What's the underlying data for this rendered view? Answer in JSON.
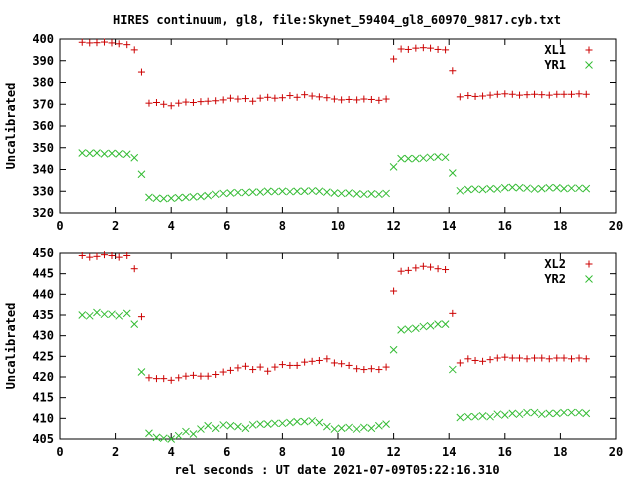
{
  "title": "HIRES continuum, gl8, file:Skynet_59404_gl8_60970_9817.cyb.txt",
  "xlabel": "rel seconds : UT date 2021-07-09T05:22:16.310",
  "colors": {
    "red": "#cc0000",
    "green": "#33bb33",
    "axis": "#000000"
  },
  "chart_data": [
    {
      "type": "scatter",
      "ylabel": "Uncalibrated",
      "xlim": [
        0,
        20
      ],
      "ylim": [
        320,
        400
      ],
      "xticks": [
        0,
        2,
        4,
        6,
        8,
        10,
        12,
        14,
        16,
        18,
        20
      ],
      "yticks": [
        320,
        330,
        340,
        350,
        360,
        370,
        380,
        390,
        400
      ],
      "grid": false,
      "legend_position": "top-right",
      "series": [
        {
          "name": "XL1",
          "marker": "plus",
          "color": "#cc0000",
          "x": [
            0.8,
            1.07,
            1.33,
            1.6,
            1.87,
            2.13,
            2.4,
            2.67,
            2.93,
            3.2,
            3.47,
            3.73,
            4.0,
            4.27,
            4.53,
            4.8,
            5.07,
            5.33,
            5.6,
            5.87,
            6.13,
            6.4,
            6.67,
            6.93,
            7.2,
            7.47,
            7.73,
            8.0,
            8.27,
            8.53,
            8.8,
            9.07,
            9.33,
            9.6,
            9.87,
            10.13,
            10.4,
            10.67,
            10.93,
            11.2,
            11.47,
            11.73,
            12.0,
            12.27,
            12.53,
            12.8,
            13.07,
            13.33,
            13.6,
            13.87,
            14.13,
            14.4,
            14.67,
            14.93,
            15.2,
            15.47,
            15.73,
            16.0,
            16.27,
            16.53,
            16.8,
            17.07,
            17.33,
            17.6,
            17.87,
            18.13,
            18.4,
            18.67,
            18.93
          ],
          "y": [
            398.5,
            398.2,
            398.3,
            398.6,
            398.2,
            397.8,
            397.4,
            395.0,
            384.8,
            370.5,
            370.8,
            370.0,
            369.3,
            370.5,
            371.0,
            370.8,
            371.2,
            371.4,
            371.6,
            372.0,
            372.8,
            372.4,
            372.6,
            371.4,
            372.8,
            373.2,
            372.8,
            373.0,
            374.0,
            373.2,
            374.4,
            373.8,
            373.4,
            373.0,
            372.4,
            372.0,
            372.2,
            372.0,
            372.4,
            372.2,
            371.8,
            372.4,
            390.8,
            395.4,
            395.2,
            395.8,
            396.0,
            395.8,
            395.2,
            395.0,
            385.4,
            373.4,
            374.0,
            373.6,
            373.8,
            374.2,
            374.6,
            374.8,
            374.6,
            374.2,
            374.4,
            374.6,
            374.4,
            374.2,
            374.6,
            374.6,
            374.6,
            374.8,
            374.6
          ]
        },
        {
          "name": "YR1",
          "marker": "cross",
          "color": "#33bb33",
          "x": [
            0.8,
            1.07,
            1.33,
            1.6,
            1.87,
            2.13,
            2.4,
            2.67,
            2.93,
            3.2,
            3.47,
            3.73,
            4.0,
            4.27,
            4.53,
            4.8,
            5.07,
            5.33,
            5.6,
            5.87,
            6.13,
            6.4,
            6.67,
            6.93,
            7.2,
            7.47,
            7.73,
            8.0,
            8.27,
            8.53,
            8.8,
            9.07,
            9.33,
            9.6,
            9.87,
            10.13,
            10.4,
            10.67,
            10.93,
            11.2,
            11.47,
            11.73,
            12.0,
            12.27,
            12.53,
            12.8,
            13.07,
            13.33,
            13.6,
            13.87,
            14.13,
            14.4,
            14.67,
            14.93,
            15.2,
            15.47,
            15.73,
            16.0,
            16.27,
            16.53,
            16.8,
            17.07,
            17.33,
            17.6,
            17.87,
            18.13,
            18.4,
            18.67,
            18.93
          ],
          "y": [
            347.6,
            347.4,
            347.6,
            347.2,
            347.4,
            347.2,
            347.0,
            345.4,
            337.8,
            327.2,
            326.8,
            326.6,
            326.8,
            327.0,
            327.2,
            327.4,
            327.6,
            328.0,
            328.6,
            329.0,
            329.2,
            329.4,
            329.4,
            329.6,
            329.6,
            330.0,
            329.8,
            330.0,
            329.8,
            330.0,
            330.0,
            330.2,
            330.0,
            329.6,
            329.2,
            329.0,
            329.2,
            328.8,
            328.6,
            328.8,
            328.6,
            329.0,
            341.2,
            345.0,
            345.0,
            345.0,
            345.2,
            345.6,
            345.8,
            345.6,
            338.4,
            330.2,
            330.8,
            331.0,
            330.8,
            331.2,
            331.0,
            331.6,
            331.8,
            331.6,
            331.4,
            331.0,
            331.2,
            331.6,
            331.6,
            331.2,
            331.4,
            331.4,
            331.2
          ]
        }
      ]
    },
    {
      "type": "scatter",
      "ylabel": "Uncalibrated",
      "xlim": [
        0,
        20
      ],
      "ylim": [
        405,
        450
      ],
      "xticks": [
        0,
        2,
        4,
        6,
        8,
        10,
        12,
        14,
        16,
        18,
        20
      ],
      "yticks": [
        405,
        410,
        415,
        420,
        425,
        430,
        435,
        440,
        445,
        450
      ],
      "grid": false,
      "legend_position": "top-right",
      "series": [
        {
          "name": "XL2",
          "marker": "plus",
          "color": "#cc0000",
          "x": [
            0.8,
            1.07,
            1.33,
            1.6,
            1.87,
            2.13,
            2.4,
            2.67,
            2.93,
            3.2,
            3.47,
            3.73,
            4.0,
            4.27,
            4.53,
            4.8,
            5.07,
            5.33,
            5.6,
            5.87,
            6.13,
            6.4,
            6.67,
            6.93,
            7.2,
            7.47,
            7.73,
            8.0,
            8.27,
            8.53,
            8.8,
            9.07,
            9.33,
            9.6,
            9.87,
            10.13,
            10.4,
            10.67,
            10.93,
            11.2,
            11.47,
            11.73,
            12.0,
            12.27,
            12.53,
            12.8,
            13.07,
            13.33,
            13.6,
            13.87,
            14.13,
            14.4,
            14.67,
            14.93,
            15.2,
            15.47,
            15.73,
            16.0,
            16.27,
            16.53,
            16.8,
            17.07,
            17.33,
            17.6,
            17.87,
            18.13,
            18.4,
            18.67,
            18.93
          ],
          "y": [
            449.4,
            449.0,
            449.2,
            449.6,
            449.4,
            449.0,
            449.4,
            446.2,
            434.6,
            419.8,
            419.6,
            419.6,
            419.2,
            419.8,
            420.2,
            420.4,
            420.2,
            420.2,
            420.6,
            421.2,
            421.6,
            422.2,
            422.6,
            421.8,
            422.4,
            421.4,
            422.4,
            423.0,
            422.8,
            422.8,
            423.6,
            423.8,
            424.0,
            424.4,
            423.4,
            423.2,
            422.8,
            422.0,
            421.8,
            422.0,
            421.8,
            422.4,
            440.8,
            445.6,
            445.8,
            446.4,
            446.8,
            446.6,
            446.2,
            446.0,
            435.4,
            423.4,
            424.4,
            424.0,
            423.8,
            424.2,
            424.6,
            424.8,
            424.6,
            424.6,
            424.4,
            424.6,
            424.6,
            424.4,
            424.6,
            424.6,
            424.4,
            424.6,
            424.4
          ]
        },
        {
          "name": "YR2",
          "marker": "cross",
          "color": "#33bb33",
          "x": [
            0.8,
            1.07,
            1.33,
            1.6,
            1.87,
            2.13,
            2.4,
            2.67,
            2.93,
            3.2,
            3.47,
            3.73,
            4.0,
            4.27,
            4.53,
            4.8,
            5.07,
            5.33,
            5.6,
            5.87,
            6.13,
            6.4,
            6.67,
            6.93,
            7.2,
            7.47,
            7.73,
            8.0,
            8.27,
            8.53,
            8.8,
            9.07,
            9.33,
            9.6,
            9.87,
            10.13,
            10.4,
            10.67,
            10.93,
            11.2,
            11.47,
            11.73,
            12.0,
            12.27,
            12.53,
            12.8,
            13.07,
            13.33,
            13.6,
            13.87,
            14.13,
            14.4,
            14.67,
            14.93,
            15.2,
            15.47,
            15.73,
            16.0,
            16.27,
            16.53,
            16.8,
            17.07,
            17.33,
            17.6,
            17.87,
            18.13,
            18.4,
            18.67,
            18.93
          ],
          "y": [
            435.0,
            434.8,
            435.6,
            435.2,
            435.2,
            434.8,
            435.4,
            432.8,
            421.2,
            406.4,
            405.4,
            405.2,
            405.0,
            405.8,
            406.8,
            406.2,
            407.4,
            408.2,
            407.6,
            408.4,
            408.2,
            408.0,
            407.6,
            408.4,
            408.6,
            408.6,
            408.8,
            408.8,
            409.0,
            409.2,
            409.2,
            409.4,
            409.0,
            408.0,
            407.4,
            407.6,
            407.8,
            407.4,
            407.8,
            407.6,
            408.2,
            408.6,
            426.6,
            431.4,
            431.6,
            431.8,
            432.2,
            432.4,
            432.8,
            432.8,
            421.8,
            410.2,
            410.4,
            410.4,
            410.6,
            410.4,
            411.0,
            410.8,
            411.2,
            411.0,
            411.4,
            411.4,
            411.0,
            411.2,
            411.2,
            411.4,
            411.4,
            411.4,
            411.2
          ]
        }
      ]
    }
  ]
}
